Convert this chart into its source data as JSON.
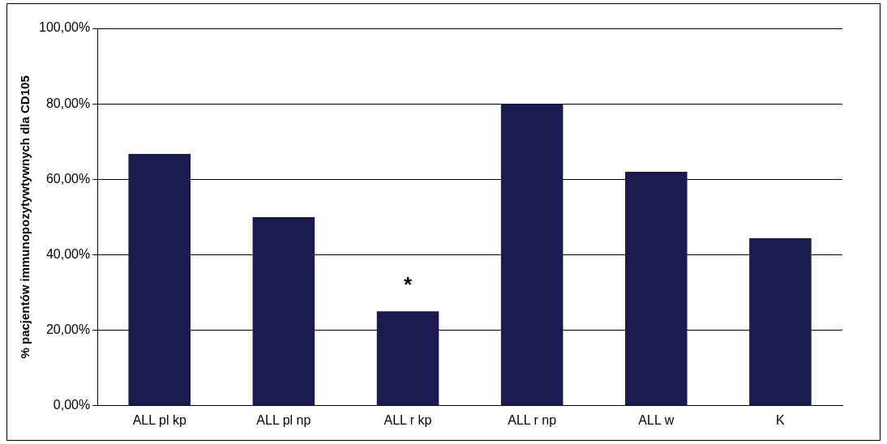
{
  "chart_data": {
    "type": "bar",
    "ylabel": "% pacjentów immunopozytywtywnych dla CD105",
    "categories": [
      "ALL pl kp",
      "ALL pl np",
      "ALL r kp",
      "ALL r np",
      "ALL w",
      "K"
    ],
    "values": [
      66.7,
      50,
      25,
      80,
      62,
      44.4
    ],
    "color": "#1b1b4f",
    "ylim": [
      0,
      100
    ],
    "yticks": [
      {
        "value": 0,
        "label": "0,00%"
      },
      {
        "value": 20,
        "label": "20,00%"
      },
      {
        "value": 40,
        "label": "40,00%"
      },
      {
        "value": 60,
        "label": "60,00%"
      },
      {
        "value": 80,
        "label": "80,00%"
      },
      {
        "value": 100,
        "label": "100,00%"
      }
    ],
    "grid": "y",
    "annotations": [
      {
        "text": "*",
        "x": "ALL r kp",
        "y": 25
      }
    ]
  }
}
